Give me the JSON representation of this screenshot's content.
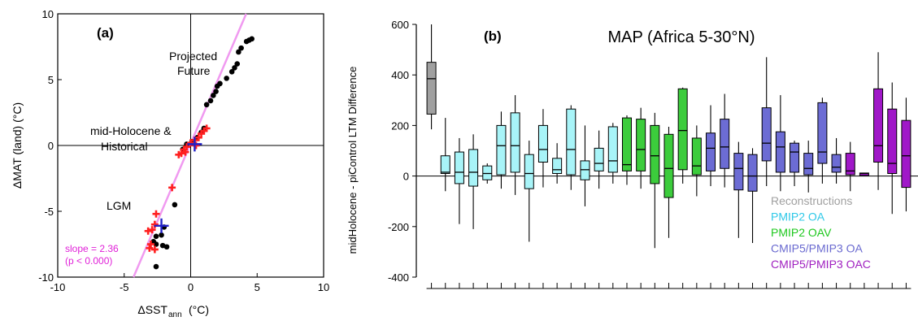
{
  "chart_data": [
    {
      "type": "scatter",
      "panel_label": "(a)",
      "xlabel": "ΔSST",
      "xlabel_sub": "ann",
      "xlabel_unit": "(°C)",
      "ylabel": "ΔMAT (land) (°C)",
      "xlim": [
        -10,
        10
      ],
      "ylim": [
        -10,
        10
      ],
      "xticks": [
        -10,
        -5,
        0,
        5,
        10
      ],
      "yticks": [
        -10,
        -5,
        0,
        5,
        10
      ],
      "annotations": {
        "future_line1": "Projected",
        "future_line2": "Future",
        "holo_line1": "mid-Holocene &",
        "holo_line2": "Historical",
        "lgm": "LGM",
        "slope": "slope = 2.36",
        "pvalue": "(p < 0.000)"
      },
      "regression": {
        "slope": 2.36,
        "intercept": 0.15,
        "y_range": [
          -10,
          10
        ]
      },
      "series": [
        {
          "marker": "circle",
          "color": "#000000",
          "points": [
            [
              4.6,
              8.1
            ],
            [
              4.4,
              8.0
            ],
            [
              4.2,
              7.9
            ],
            [
              3.8,
              7.4
            ],
            [
              3.6,
              7.1
            ],
            [
              3.5,
              6.2
            ],
            [
              3.3,
              5.9
            ],
            [
              3.1,
              5.6
            ],
            [
              2.7,
              5.1
            ],
            [
              2.2,
              4.7
            ],
            [
              2.0,
              4.5
            ],
            [
              1.9,
              4.1
            ],
            [
              1.7,
              3.8
            ],
            [
              1.5,
              3.4
            ],
            [
              1.2,
              3.1
            ],
            [
              1.0,
              1.3
            ],
            [
              0.8,
              1.0
            ],
            [
              0.5,
              0.6
            ],
            [
              0.1,
              0.3
            ],
            [
              -0.3,
              0.1
            ],
            [
              -0.6,
              -0.3
            ],
            [
              -1.2,
              -4.5
            ],
            [
              -2.0,
              -6.2
            ],
            [
              -2.2,
              -6.8
            ],
            [
              -2.6,
              -6.9
            ],
            [
              -2.8,
              -7.3
            ],
            [
              -2.6,
              -7.5
            ],
            [
              -2.1,
              -7.6
            ],
            [
              -1.8,
              -7.7
            ],
            [
              -2.6,
              -9.2
            ]
          ]
        },
        {
          "marker": "plus",
          "color": "#ff2020",
          "points": [
            [
              1.2,
              1.3
            ],
            [
              1.0,
              1.1
            ],
            [
              0.8,
              0.9
            ],
            [
              0.6,
              0.6
            ],
            [
              0.3,
              0.4
            ],
            [
              0.0,
              0.2
            ],
            [
              -0.3,
              -0.1
            ],
            [
              -0.5,
              -0.3
            ],
            [
              -0.7,
              -0.6
            ],
            [
              -0.9,
              -0.7
            ],
            [
              -0.4,
              -0.5
            ],
            [
              0.4,
              0.0
            ],
            [
              -1.4,
              -3.2
            ],
            [
              -2.6,
              -5.2
            ],
            [
              -2.7,
              -6.0
            ],
            [
              -3.2,
              -6.5
            ],
            [
              -2.9,
              -6.4
            ],
            [
              -3.0,
              -7.5
            ],
            [
              -3.1,
              -7.8
            ],
            [
              -2.7,
              -7.9
            ]
          ]
        },
        {
          "marker": "big-plus",
          "color": "#2020c8",
          "points": [
            [
              0.3,
              0.1
            ],
            [
              -2.2,
              -6.1
            ]
          ]
        }
      ]
    },
    {
      "type": "box",
      "panel_label": "(b)",
      "title": "MAP (Africa 5-30°N)",
      "ylabel": "midHolocene - piControl LTM Difference",
      "ylim": [
        -400,
        600
      ],
      "yticks": [
        -400,
        -200,
        0,
        200,
        400,
        600
      ],
      "legend": [
        {
          "label": "Reconstructions",
          "color": "#a0a0a0"
        },
        {
          "label": "PMIP2 OA",
          "color": "#2ec8e8"
        },
        {
          "label": "PMIP2 OAV",
          "color": "#1ec81e"
        },
        {
          "label": "CMIP5/PMIP3 OA",
          "color": "#6a6ad0"
        },
        {
          "label": "CMIP5/PMIP3 OAC",
          "color": "#a020c0"
        }
      ],
      "groups": [
        {
          "name": "Reconstructions",
          "fill": "#a0a0a0"
        },
        {
          "name": "PMIP2 OA",
          "fill": "#a8f4f8"
        },
        {
          "name": "PMIP2 OAV",
          "fill": "#3ccc3c"
        },
        {
          "name": "CMIP5/PMIP3 OA",
          "fill": "#6c6cd4"
        },
        {
          "name": "CMIP5/PMIP3 OAC",
          "fill": "#a018c8"
        }
      ],
      "boxes": [
        {
          "group": 0,
          "min": 185,
          "q1": 245,
          "median": 385,
          "q3": 450,
          "max": 600
        },
        {
          "group": 1,
          "min": -60,
          "q1": 10,
          "median": 15,
          "q3": 80,
          "max": 230
        },
        {
          "group": 1,
          "min": -190,
          "q1": -30,
          "median": 15,
          "q3": 95,
          "max": 150
        },
        {
          "group": 1,
          "min": -210,
          "q1": -40,
          "median": 15,
          "q3": 105,
          "max": 165
        },
        {
          "group": 1,
          "min": -30,
          "q1": -15,
          "median": 10,
          "q3": 40,
          "max": 50
        },
        {
          "group": 1,
          "min": -50,
          "q1": 5,
          "median": 120,
          "q3": 200,
          "max": 255
        },
        {
          "group": 1,
          "min": -75,
          "q1": 15,
          "median": 120,
          "q3": 250,
          "max": 320
        },
        {
          "group": 1,
          "min": -260,
          "q1": -50,
          "median": 10,
          "q3": 85,
          "max": 140
        },
        {
          "group": 1,
          "min": -45,
          "q1": 55,
          "median": 105,
          "q3": 200,
          "max": 265
        },
        {
          "group": 1,
          "min": -30,
          "q1": 10,
          "median": 25,
          "q3": 70,
          "max": 130
        },
        {
          "group": 1,
          "min": -55,
          "q1": 5,
          "median": 105,
          "q3": 265,
          "max": 280
        },
        {
          "group": 1,
          "min": -120,
          "q1": -15,
          "median": 25,
          "q3": 60,
          "max": 200
        },
        {
          "group": 1,
          "min": -50,
          "q1": 20,
          "median": 50,
          "q3": 110,
          "max": 180
        },
        {
          "group": 1,
          "min": -30,
          "q1": 15,
          "median": 60,
          "q3": 195,
          "max": 210
        },
        {
          "group": 2,
          "min": -35,
          "q1": 20,
          "median": 45,
          "q3": 230,
          "max": 240
        },
        {
          "group": 2,
          "min": -50,
          "q1": 20,
          "median": 105,
          "q3": 225,
          "max": 270
        },
        {
          "group": 2,
          "min": -285,
          "q1": -30,
          "median": 80,
          "q3": 200,
          "max": 250
        },
        {
          "group": 2,
          "min": -245,
          "q1": -85,
          "median": 30,
          "q3": 165,
          "max": 195
        },
        {
          "group": 2,
          "min": -30,
          "q1": 25,
          "median": 180,
          "q3": 345,
          "max": 350
        },
        {
          "group": 2,
          "min": -80,
          "q1": 5,
          "median": 40,
          "q3": 150,
          "max": 200
        },
        {
          "group": 3,
          "min": -40,
          "q1": 20,
          "median": 110,
          "q3": 170,
          "max": 280
        },
        {
          "group": 3,
          "min": -45,
          "q1": 30,
          "median": 115,
          "q3": 225,
          "max": 325
        },
        {
          "group": 3,
          "min": -245,
          "q1": -55,
          "median": 30,
          "q3": 90,
          "max": 135
        },
        {
          "group": 3,
          "min": -265,
          "q1": -60,
          "median": 0,
          "q3": 85,
          "max": 110
        },
        {
          "group": 3,
          "min": -40,
          "q1": 60,
          "median": 130,
          "q3": 270,
          "max": 470
        },
        {
          "group": 3,
          "min": -60,
          "q1": 15,
          "median": 115,
          "q3": 175,
          "max": 320
        },
        {
          "group": 3,
          "min": -40,
          "q1": 15,
          "median": 95,
          "q3": 130,
          "max": 140
        },
        {
          "group": 3,
          "min": -65,
          "q1": 5,
          "median": 30,
          "q3": 90,
          "max": 140
        },
        {
          "group": 3,
          "min": -30,
          "q1": 50,
          "median": 95,
          "q3": 290,
          "max": 310
        },
        {
          "group": 3,
          "min": -30,
          "q1": 15,
          "median": 35,
          "q3": 85,
          "max": 150
        },
        {
          "group": 4,
          "min": -60,
          "q1": 5,
          "median": 20,
          "q3": 90,
          "max": 135
        },
        {
          "group": 4,
          "min": 0,
          "q1": 2,
          "median": 10,
          "q3": 12,
          "max": 12
        },
        {
          "group": 4,
          "min": -55,
          "q1": 55,
          "median": 120,
          "q3": 345,
          "max": 490
        },
        {
          "group": 4,
          "min": -150,
          "q1": 10,
          "median": 50,
          "q3": 265,
          "max": 370
        },
        {
          "group": 4,
          "min": -140,
          "q1": -45,
          "median": 80,
          "q3": 220,
          "max": 310
        }
      ]
    }
  ]
}
